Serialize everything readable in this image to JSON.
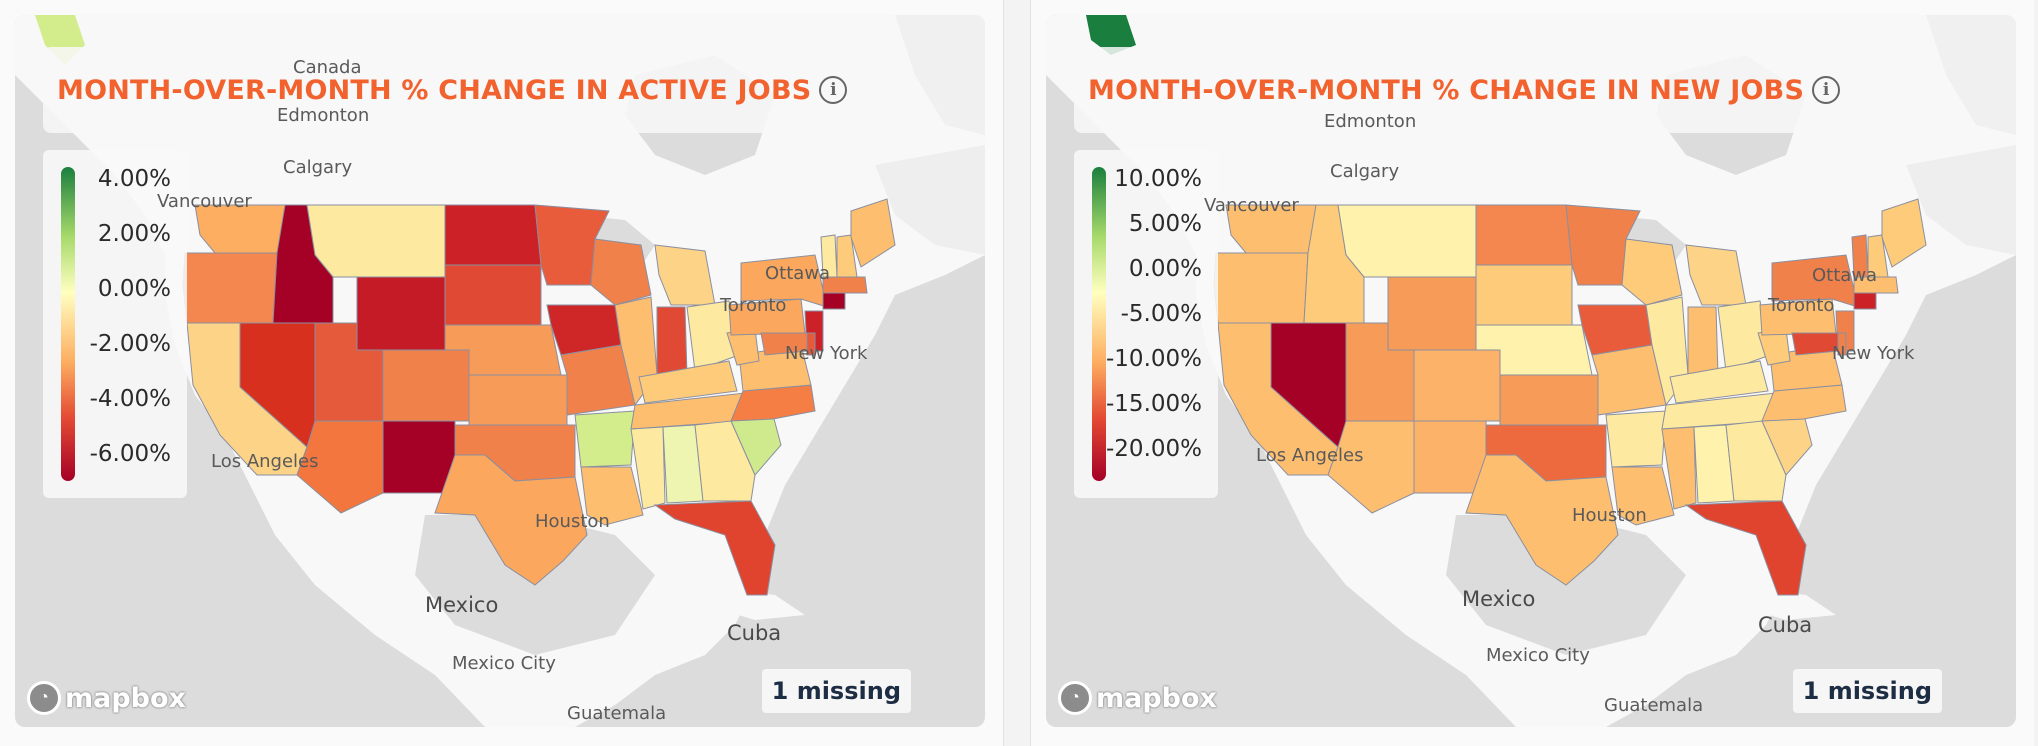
{
  "left_panel": {
    "title": "MONTH-OVER-MONTH % CHANGE IN ACTIVE JOBS",
    "legend_ticks": [
      "4.00%",
      "2.00%",
      "0.00%",
      "-2.00%",
      "-4.00%",
      "-6.00%"
    ],
    "missing_label": "1 missing",
    "places": {
      "canada": "Canada",
      "edmonton": "Edmonton",
      "calgary": "Calgary",
      "vancouver": "Vancouver",
      "ottawa": "Ottawa",
      "toronto": "Toronto",
      "new_york": "New York",
      "los_angeles": "Los Angeles",
      "houston": "Houston",
      "mexico": "Mexico",
      "mexico_city": "Mexico City",
      "cuba": "Cuba",
      "guatemala": "Guatemala"
    }
  },
  "right_panel": {
    "title": "MONTH-OVER-MONTH % CHANGE IN NEW JOBS",
    "legend_ticks": [
      "10.00%",
      "5.00%",
      "0.00%",
      "-5.00%",
      "-10.00%",
      "-15.00%",
      "-20.00%"
    ],
    "missing_label": "1 missing",
    "places": {
      "edmonton": "Edmonton",
      "calgary": "Calgary",
      "vancouver": "Vancouver",
      "ottawa": "Ottawa",
      "toronto": "Toronto",
      "new_york": "New York",
      "los_angeles": "Los Angeles",
      "houston": "Houston",
      "mexico": "Mexico",
      "mexico_city": "Mexico City",
      "cuba": "Cuba",
      "guatemala": "Guatemala"
    }
  },
  "attribution": "mapbox",
  "icons": {
    "info": "info-icon",
    "mapbox_logo": "mapbox-logo-icon"
  },
  "colors": {
    "title": "#f2622e",
    "scale_high": "#1a7f3e",
    "scale_mid": "#ffffbf",
    "scale_low": "#a50026"
  },
  "map_data": {
    "active_jobs_state_colors": {
      "WA": "#fdae61",
      "OR": "#f4874f",
      "CA": "#fdd387",
      "NV": "#d7301f",
      "ID": "#a50026",
      "MT": "#fee9a0",
      "WY": "#c51b27",
      "UT": "#e45a3a",
      "AZ": "#f2763e",
      "CO": "#f0814a",
      "NM": "#a50026",
      "ND": "#cc2127",
      "SD": "#e04a35",
      "NE": "#f79b58",
      "KS": "#f79b58",
      "OK": "#f0814a",
      "TX": "#fba75d",
      "MN": "#e85b3b",
      "IA": "#cf2728",
      "MO": "#f0814a",
      "AR": "#d3ec8c",
      "LA": "#fdbf6f",
      "WI": "#f0814a",
      "IL": "#fdbf6f",
      "MI": "#fdd387",
      "IN": "#e04a35",
      "OH": "#fee9a0",
      "KY": "#fdcb7a",
      "TN": "#fdbf6f",
      "MS": "#fee9a0",
      "AL": "#eef5b0",
      "GA": "#fee9a0",
      "FL": "#e0442f",
      "SC": "#cfea8c",
      "NC": "#f47e44",
      "VA": "#fdbf6f",
      "WV": "#fdbf6f",
      "PA": "#fba75d",
      "NY": "#fba75d",
      "VT": "#fee9a0",
      "NH": "#fdcb7a",
      "ME": "#fdbf6f",
      "MA": "#f0814a",
      "NJ": "#cc2127",
      "CT": "#a50026",
      "MD": "#f0814a",
      "DE": "#e45a3a"
    },
    "new_jobs_state_colors": {
      "WA": "#fdbf6f",
      "OR": "#fdbf6f",
      "CA": "#fdbf6f",
      "NV": "#a50026",
      "ID": "#fdcb7a",
      "MT": "#fff2ad",
      "WY": "#f79b58",
      "UT": "#f79b58",
      "AZ": "#fdbf6f",
      "CO": "#fdb26a",
      "NM": "#fdb26a",
      "ND": "#f4874f",
      "SD": "#fdcb7a",
      "NE": "#fff2ad",
      "KS": "#f79b58",
      "OK": "#ec6a3e",
      "TX": "#fdbf6f",
      "MN": "#f0814a",
      "IA": "#e85b3b",
      "MO": "#fdbf6f",
      "AR": "#fee9a0",
      "LA": "#fdbf6f",
      "WI": "#fdcb7a",
      "IL": "#fee9a0",
      "MI": "#fdd387",
      "IN": "#fdbf6f",
      "OH": "#fee9a0",
      "KY": "#fee9a0",
      "TN": "#fee9a0",
      "MS": "#fdbf6f",
      "AL": "#fff2ad",
      "GA": "#fee9a0",
      "FL": "#e0442f",
      "SC": "#fdd387",
      "NC": "#fdbf6f",
      "VA": "#fdbf6f",
      "WV": "#fdcb7a",
      "PA": "#fdbf6f",
      "NY": "#f0814a",
      "VT": "#f0814a",
      "NH": "#fdcb7a",
      "ME": "#fdcb7a",
      "MA": "#fdbf6f",
      "NJ": "#f0814a",
      "CT": "#cc2127",
      "MD": "#e04a35",
      "DE": "#f0814a"
    }
  }
}
